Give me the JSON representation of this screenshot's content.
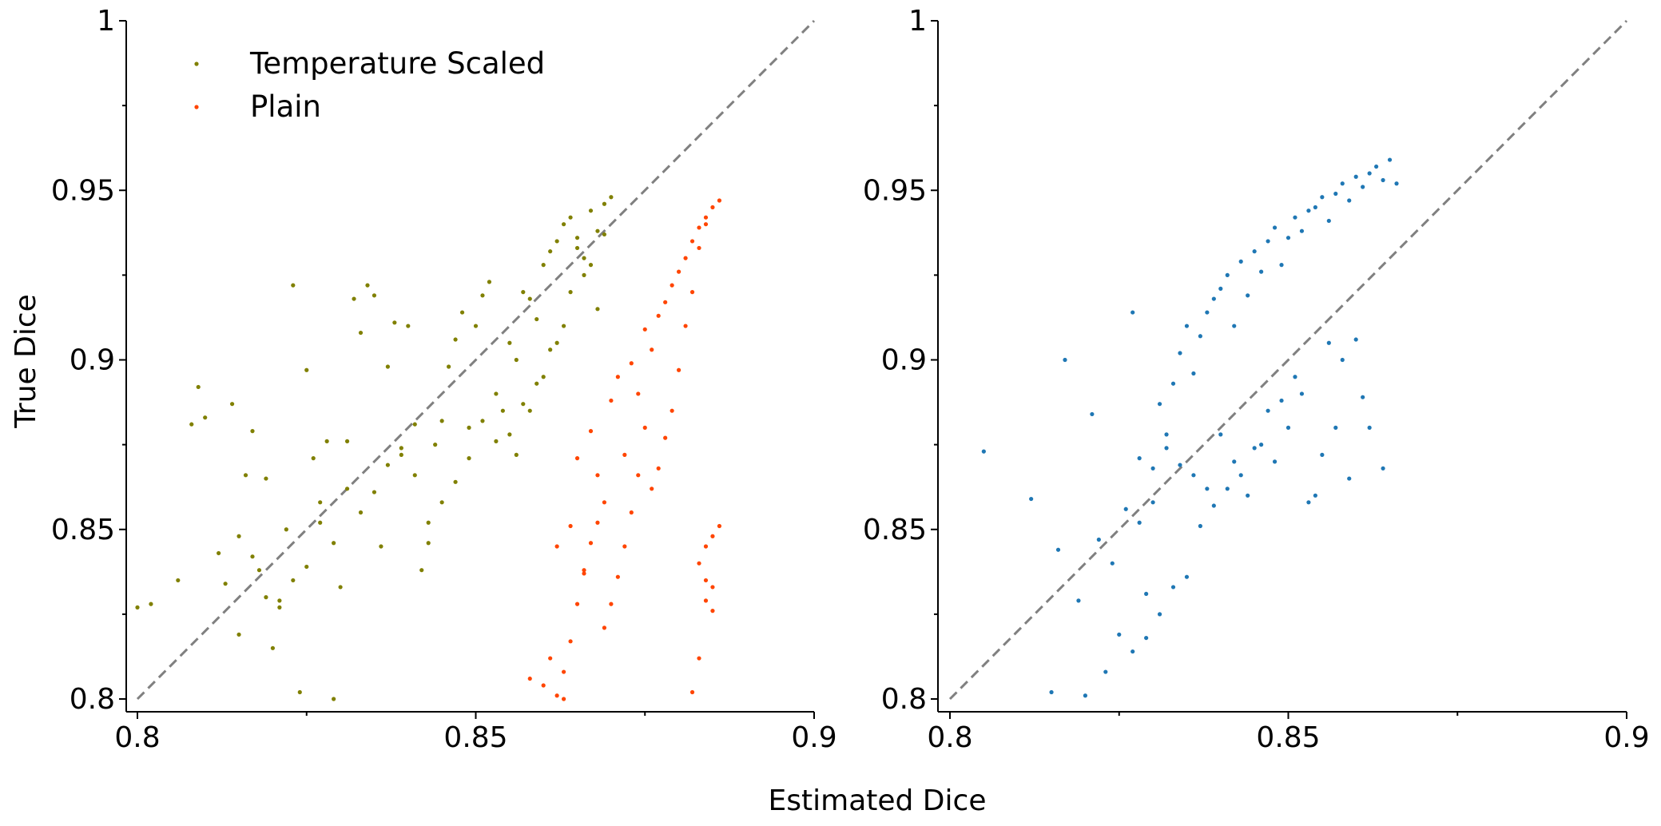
{
  "figure": {
    "ylabel": "True Dice",
    "xlabel": "Estimated Dice"
  },
  "chart_data": [
    {
      "type": "scatter",
      "title": "",
      "xlabel": "Estimated Dice",
      "ylabel": "True Dice",
      "xlim": [
        0.8,
        0.9
      ],
      "ylim": [
        0.8,
        1.0
      ],
      "xticks": [
        0.8,
        0.85,
        0.9
      ],
      "xtick_labels": [
        "0.8",
        "0.85",
        "0.9"
      ],
      "yticks": [
        0.8,
        0.85,
        0.9,
        0.95,
        1.0
      ],
      "ytick_labels": [
        "0.8",
        "0.85",
        "0.9",
        "0.95",
        "1"
      ],
      "grid": false,
      "legend": "top-left",
      "reference_line": {
        "from": [
          0.8,
          0.8
        ],
        "to": [
          0.9,
          1.0
        ],
        "style": "dashed",
        "color": "#808080"
      },
      "series": [
        {
          "name": "Temperature Scaled",
          "color": "#808000",
          "x": [
            0.8,
            0.802,
            0.806,
            0.808,
            0.809,
            0.81,
            0.812,
            0.813,
            0.814,
            0.815,
            0.816,
            0.817,
            0.818,
            0.819,
            0.82,
            0.821,
            0.822,
            0.823,
            0.824,
            0.825,
            0.826,
            0.827,
            0.828,
            0.829,
            0.83,
            0.831,
            0.832,
            0.833,
            0.834,
            0.835,
            0.836,
            0.837,
            0.838,
            0.839,
            0.84,
            0.841,
            0.842,
            0.843,
            0.844,
            0.845,
            0.846,
            0.847,
            0.848,
            0.849,
            0.85,
            0.851,
            0.852,
            0.853,
            0.854,
            0.855,
            0.856,
            0.857,
            0.858,
            0.859,
            0.86,
            0.861,
            0.862,
            0.863,
            0.864,
            0.865,
            0.866,
            0.867,
            0.868,
            0.869,
            0.87,
            0.864,
            0.866,
            0.868,
            0.862,
            0.86,
            0.858,
            0.856,
            0.865,
            0.867,
            0.869,
            0.863,
            0.861,
            0.859,
            0.857,
            0.855,
            0.853,
            0.851,
            0.849,
            0.847,
            0.845,
            0.843,
            0.841,
            0.839,
            0.837,
            0.835,
            0.833,
            0.831,
            0.829,
            0.827,
            0.825,
            0.823,
            0.821,
            0.819,
            0.817,
            0.815
          ],
          "y": [
            0.827,
            0.828,
            0.835,
            0.881,
            0.892,
            0.883,
            0.843,
            0.834,
            0.887,
            0.819,
            0.866,
            0.879,
            0.838,
            0.865,
            0.815,
            0.829,
            0.85,
            0.922,
            0.802,
            0.897,
            0.871,
            0.858,
            0.876,
            0.8,
            0.833,
            0.876,
            0.918,
            0.908,
            0.922,
            0.919,
            0.845,
            0.898,
            0.911,
            0.872,
            0.91,
            0.881,
            0.838,
            0.846,
            0.875,
            0.882,
            0.898,
            0.906,
            0.914,
            0.88,
            0.91,
            0.919,
            0.923,
            0.876,
            0.885,
            0.905,
            0.9,
            0.92,
            0.918,
            0.912,
            0.928,
            0.932,
            0.935,
            0.94,
            0.942,
            0.936,
            0.93,
            0.944,
            0.938,
            0.946,
            0.948,
            0.92,
            0.925,
            0.915,
            0.905,
            0.895,
            0.885,
            0.872,
            0.933,
            0.928,
            0.937,
            0.91,
            0.903,
            0.893,
            0.887,
            0.878,
            0.89,
            0.882,
            0.871,
            0.864,
            0.858,
            0.852,
            0.866,
            0.874,
            0.869,
            0.861,
            0.855,
            0.862,
            0.846,
            0.852,
            0.839,
            0.835,
            0.827,
            0.83,
            0.842,
            0.848
          ]
        },
        {
          "name": "Plain",
          "color": "#ff4500",
          "x": [
            0.861,
            0.862,
            0.863,
            0.864,
            0.865,
            0.866,
            0.867,
            0.868,
            0.869,
            0.87,
            0.871,
            0.872,
            0.873,
            0.874,
            0.875,
            0.876,
            0.877,
            0.878,
            0.879,
            0.88,
            0.881,
            0.882,
            0.883,
            0.884,
            0.885,
            0.886,
            0.884,
            0.883,
            0.882,
            0.881,
            0.88,
            0.879,
            0.878,
            0.877,
            0.876,
            0.875,
            0.874,
            0.873,
            0.872,
            0.871,
            0.87,
            0.869,
            0.868,
            0.867,
            0.866,
            0.865,
            0.864,
            0.863,
            0.862,
            0.86,
            0.858,
            0.884,
            0.885,
            0.883,
            0.884,
            0.885,
            0.886,
            0.885,
            0.884,
            0.883,
            0.882
          ],
          "y": [
            0.812,
            0.845,
            0.8,
            0.851,
            0.871,
            0.838,
            0.879,
            0.866,
            0.858,
            0.888,
            0.895,
            0.872,
            0.899,
            0.89,
            0.909,
            0.903,
            0.913,
            0.917,
            0.922,
            0.926,
            0.93,
            0.935,
            0.939,
            0.942,
            0.945,
            0.947,
            0.94,
            0.933,
            0.92,
            0.91,
            0.897,
            0.885,
            0.877,
            0.868,
            0.862,
            0.88,
            0.866,
            0.855,
            0.845,
            0.836,
            0.828,
            0.821,
            0.852,
            0.846,
            0.837,
            0.828,
            0.817,
            0.808,
            0.801,
            0.804,
            0.806,
            0.845,
            0.848,
            0.84,
            0.829,
            0.833,
            0.851,
            0.826,
            0.835,
            0.812,
            0.802
          ]
        }
      ]
    },
    {
      "type": "scatter",
      "title": "",
      "xlabel": "Estimated Dice",
      "ylabel": "",
      "xlim": [
        0.8,
        0.9
      ],
      "ylim": [
        0.8,
        1.0
      ],
      "xticks": [
        0.8,
        0.85,
        0.9
      ],
      "xtick_labels": [
        "0.8",
        "0.85",
        "0.9"
      ],
      "yticks": [
        0.8,
        0.85,
        0.9,
        0.95,
        1.0
      ],
      "ytick_labels": [
        "0.8",
        "0.85",
        "0.9",
        "0.95",
        "1"
      ],
      "grid": false,
      "reference_line": {
        "from": [
          0.8,
          0.8
        ],
        "to": [
          0.9,
          1.0
        ],
        "style": "dashed",
        "color": "#808080"
      },
      "series": [
        {
          "color": "#1f77b4",
          "x": [
            0.805,
            0.812,
            0.815,
            0.816,
            0.817,
            0.819,
            0.82,
            0.821,
            0.822,
            0.823,
            0.824,
            0.825,
            0.826,
            0.827,
            0.828,
            0.829,
            0.83,
            0.831,
            0.832,
            0.833,
            0.834,
            0.835,
            0.836,
            0.837,
            0.838,
            0.839,
            0.84,
            0.841,
            0.842,
            0.843,
            0.844,
            0.845,
            0.846,
            0.847,
            0.848,
            0.849,
            0.85,
            0.851,
            0.852,
            0.853,
            0.854,
            0.855,
            0.856,
            0.857,
            0.858,
            0.859,
            0.86,
            0.861,
            0.862,
            0.863,
            0.864,
            0.865,
            0.866,
            0.853,
            0.855,
            0.857,
            0.859,
            0.861,
            0.851,
            0.849,
            0.847,
            0.845,
            0.843,
            0.841,
            0.839,
            0.837,
            0.835,
            0.833,
            0.831,
            0.829,
            0.827,
            0.858,
            0.86,
            0.862,
            0.864,
            0.856,
            0.854,
            0.852,
            0.85,
            0.848,
            0.846,
            0.844,
            0.842,
            0.84,
            0.838,
            0.836,
            0.834,
            0.832,
            0.83,
            0.828
          ],
          "y": [
            0.873,
            0.859,
            0.802,
            0.844,
            0.9,
            0.829,
            0.801,
            0.884,
            0.847,
            0.808,
            0.84,
            0.819,
            0.856,
            0.914,
            0.871,
            0.831,
            0.868,
            0.887,
            0.878,
            0.893,
            0.902,
            0.91,
            0.896,
            0.907,
            0.914,
            0.918,
            0.921,
            0.925,
            0.91,
            0.929,
            0.919,
            0.932,
            0.926,
            0.935,
            0.939,
            0.928,
            0.936,
            0.942,
            0.938,
            0.944,
            0.945,
            0.948,
            0.941,
            0.949,
            0.952,
            0.947,
            0.954,
            0.951,
            0.955,
            0.957,
            0.953,
            0.959,
            0.952,
            0.858,
            0.872,
            0.88,
            0.865,
            0.889,
            0.895,
            0.888,
            0.885,
            0.874,
            0.866,
            0.862,
            0.857,
            0.851,
            0.836,
            0.833,
            0.825,
            0.818,
            0.814,
            0.9,
            0.906,
            0.88,
            0.868,
            0.905,
            0.86,
            0.89,
            0.88,
            0.87,
            0.875,
            0.86,
            0.87,
            0.878,
            0.862,
            0.866,
            0.869,
            0.874,
            0.858,
            0.852
          ]
        }
      ]
    }
  ]
}
